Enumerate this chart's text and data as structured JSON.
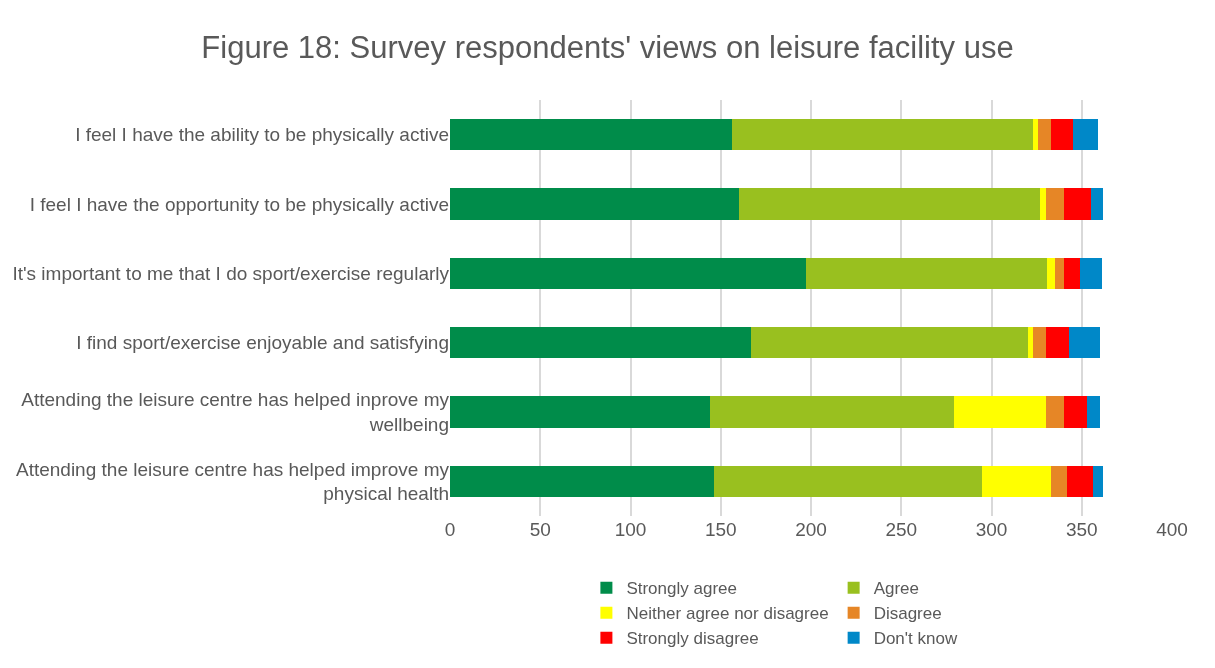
{
  "chart_data": {
    "type": "bar",
    "orientation": "horizontal",
    "stacked": true,
    "title": "Figure 18: Survey respondents' views on leisure facility use",
    "categories": [
      "I feel I have the ability to be physically active",
      "I feel I have the opportunity to be physically active",
      "It's important to me that I do sport/exercise regularly",
      "I find sport/exercise enjoyable and satisfying",
      "Attending the leisure centre has helped inprove my wellbeing",
      "Attending the leisure centre has helped improve my physical health"
    ],
    "series": [
      {
        "name": "Strongly agree",
        "color": "#008c4a",
        "values": [
          156,
          160,
          197,
          167,
          144,
          146
        ]
      },
      {
        "name": "Agree",
        "color": "#99c01f",
        "values": [
          167,
          167,
          134,
          153,
          135,
          149
        ]
      },
      {
        "name": "Neither agree nor disagree",
        "color": "#ffff00",
        "values": [
          3,
          3,
          4,
          3,
          51,
          38
        ]
      },
      {
        "name": "Disagree",
        "color": "#e68626",
        "values": [
          7,
          10,
          5,
          7,
          10,
          9
        ]
      },
      {
        "name": "Strongly disagree",
        "color": "#ff0000",
        "values": [
          12,
          15,
          9,
          13,
          13,
          14
        ]
      },
      {
        "name": "Don't know",
        "color": "#0088c8",
        "values": [
          14,
          7,
          12,
          17,
          7,
          6
        ]
      }
    ],
    "xlim": [
      0,
      400
    ],
    "xticks": [
      0,
      50,
      100,
      150,
      200,
      250,
      300,
      350,
      400
    ],
    "grid": "x",
    "legend": "bottom"
  }
}
